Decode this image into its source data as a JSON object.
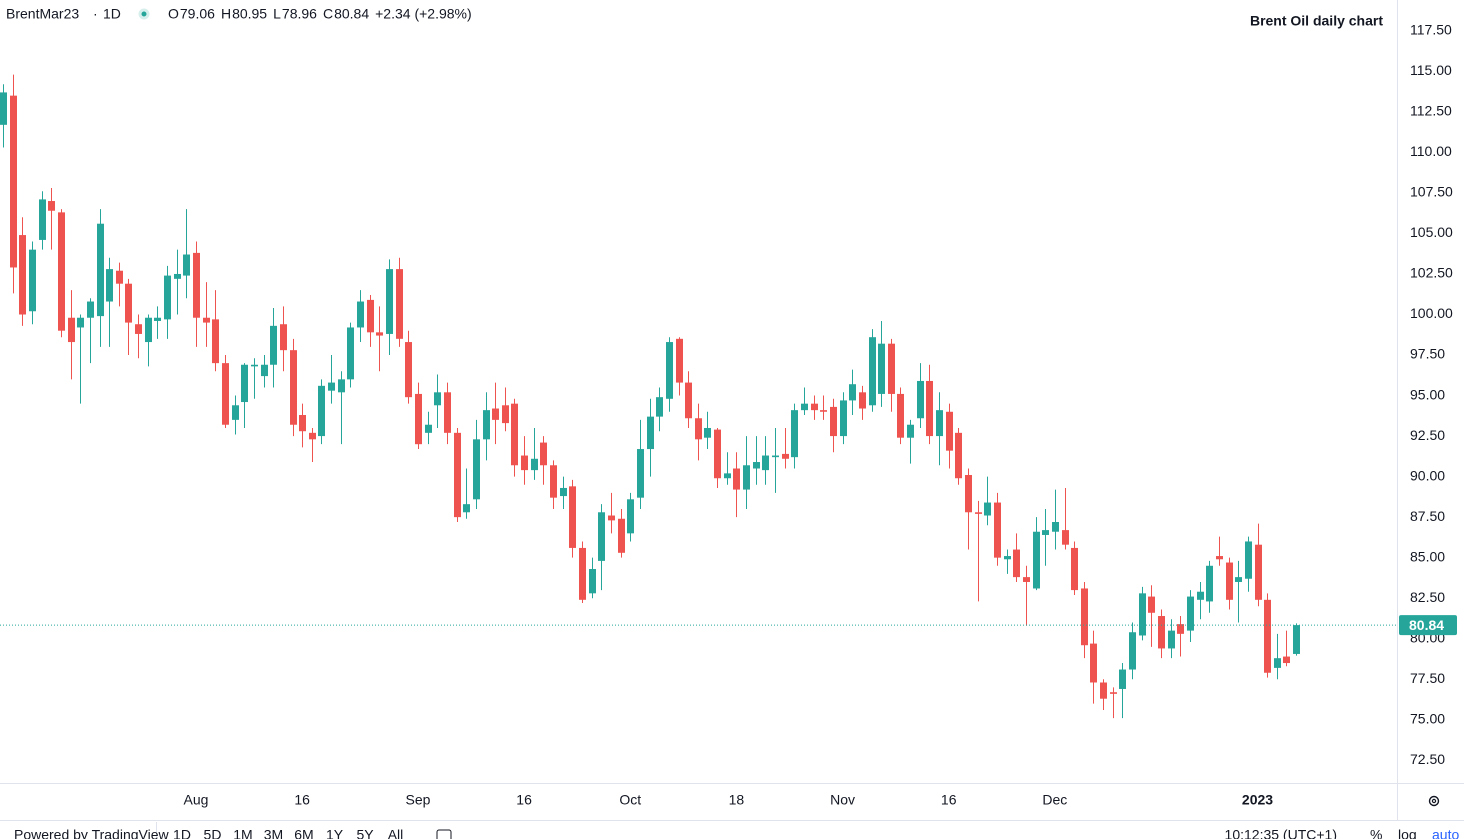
{
  "header": {
    "symbol": "BrentMar23",
    "separator": "·",
    "interval": "1D",
    "ohlc": [
      {
        "label": "O",
        "value": "79.06"
      },
      {
        "label": "H",
        "value": "80.95"
      },
      {
        "label": "L",
        "value": "78.96"
      },
      {
        "label": "C",
        "value": "80.84"
      }
    ],
    "change": "+2.34 (+2.98%)"
  },
  "chart_data": {
    "type": "candlestick",
    "title": "Brent Oil daily chart",
    "up_color": "#26a69a",
    "down_color": "#ef5350",
    "grid": false,
    "categories": [
      null,
      null,
      null,
      null,
      null,
      null,
      null,
      null,
      null,
      null,
      null,
      null,
      null,
      null,
      null,
      null,
      null,
      null,
      null,
      null,
      "Aug",
      null,
      null,
      null,
      null,
      null,
      null,
      null,
      null,
      null,
      null,
      "16",
      null,
      null,
      null,
      null,
      null,
      null,
      null,
      null,
      null,
      null,
      null,
      "Sep",
      null,
      null,
      null,
      null,
      null,
      null,
      null,
      null,
      null,
      null,
      "16",
      null,
      null,
      null,
      null,
      null,
      null,
      null,
      null,
      null,
      null,
      "Oct",
      null,
      null,
      null,
      null,
      null,
      null,
      null,
      null,
      null,
      null,
      "18",
      null,
      null,
      null,
      null,
      null,
      null,
      null,
      null,
      null,
      null,
      "Nov",
      null,
      null,
      null,
      null,
      null,
      null,
      null,
      null,
      null,
      null,
      "16",
      null,
      null,
      null,
      null,
      null,
      null,
      null,
      null,
      null,
      null,
      "Dec",
      null,
      null,
      null,
      null,
      null,
      null,
      null,
      null,
      null,
      null,
      null,
      null,
      null,
      null,
      null,
      null,
      null,
      null,
      null,
      null,
      "2023",
      null,
      null,
      null,
      null
    ],
    "ohlc": [
      [
        111.7,
        114.2,
        110.3,
        113.7
      ],
      [
        113.5,
        114.8,
        101.3,
        102.9
      ],
      [
        104.9,
        106,
        99.3,
        100
      ],
      [
        100.2,
        104.5,
        99.4,
        104
      ],
      [
        104.6,
        107.6,
        104,
        107.1
      ],
      [
        107,
        107.8,
        104,
        106.4
      ],
      [
        106.3,
        106.5,
        98.6,
        99
      ],
      [
        99.8,
        101.5,
        96,
        98.3
      ],
      [
        99.2,
        100,
        94.5,
        99.8
      ],
      [
        99.8,
        101,
        97,
        100.8
      ],
      [
        99.9,
        106.5,
        98,
        105.6
      ],
      [
        100.8,
        103.5,
        98,
        102.8
      ],
      [
        102.7,
        103.2,
        100.5,
        101.9
      ],
      [
        101.9,
        102.2,
        97.5,
        99.5
      ],
      [
        99.4,
        100,
        97.3,
        98.8
      ],
      [
        98.3,
        100,
        96.8,
        99.8
      ],
      [
        99.6,
        100.5,
        98.5,
        99.8
      ],
      [
        99.7,
        103,
        98.5,
        102.4
      ],
      [
        102.2,
        104,
        100,
        102.5
      ],
      [
        102.4,
        106.5,
        101,
        103.7
      ],
      [
        103.8,
        104.5,
        98,
        99.8
      ],
      [
        99.8,
        102,
        98,
        99.5
      ],
      [
        99.7,
        101.5,
        96.5,
        97
      ],
      [
        97,
        97.5,
        93,
        93.2
      ],
      [
        93.5,
        95,
        92.6,
        94.4
      ],
      [
        94.6,
        97,
        93,
        96.9
      ],
      [
        96.8,
        97.3,
        94.8,
        96.9
      ],
      [
        96.2,
        97.5,
        95.5,
        96.9
      ],
      [
        96.9,
        100.4,
        95.5,
        99.3
      ],
      [
        99.4,
        100.5,
        96.5,
        97.8
      ],
      [
        97.8,
        98.5,
        92.5,
        93.2
      ],
      [
        93.8,
        94.5,
        91.8,
        92.8
      ],
      [
        92.7,
        93,
        90.9,
        92.3
      ],
      [
        92.5,
        96,
        92,
        95.6
      ],
      [
        95.3,
        97.5,
        94.5,
        95.8
      ],
      [
        95.2,
        96.5,
        92,
        96
      ],
      [
        96,
        99.5,
        95.5,
        99.2
      ],
      [
        99.2,
        101.5,
        98.3,
        100.8
      ],
      [
        100.9,
        101.2,
        98,
        98.9
      ],
      [
        98.9,
        100.5,
        96.5,
        98.7
      ],
      [
        98.8,
        103.4,
        97.5,
        102.8
      ],
      [
        102.8,
        103.5,
        98,
        98.5
      ],
      [
        98.3,
        99,
        94.5,
        94.9
      ],
      [
        95.1,
        95.8,
        91.7,
        92
      ],
      [
        92.7,
        94,
        92,
        93.2
      ],
      [
        94.4,
        96.3,
        93,
        95.2
      ],
      [
        95.2,
        95.8,
        92,
        92.7
      ],
      [
        92.7,
        93,
        87.2,
        87.5
      ],
      [
        87.8,
        90.5,
        87.4,
        88.3
      ],
      [
        88.6,
        93.5,
        88,
        92.3
      ],
      [
        92.3,
        95.2,
        91,
        94.1
      ],
      [
        94.2,
        95.8,
        92,
        93.5
      ],
      [
        94.4,
        95.5,
        92.8,
        93.3
      ],
      [
        94.5,
        94.8,
        90,
        90.7
      ],
      [
        91.3,
        92.5,
        89.5,
        90.4
      ],
      [
        90.4,
        93,
        89.8,
        91.1
      ],
      [
        92.1,
        92.5,
        89.5,
        90.7
      ],
      [
        90.7,
        91,
        88,
        88.7
      ],
      [
        88.8,
        90,
        88,
        89.3
      ],
      [
        89.4,
        89.8,
        85,
        85.6
      ],
      [
        85.6,
        86,
        82.2,
        82.4
      ],
      [
        82.8,
        85,
        82.5,
        84.3
      ],
      [
        84.8,
        88.3,
        83,
        87.8
      ],
      [
        87.6,
        89,
        86.5,
        87.3
      ],
      [
        87.4,
        88,
        85,
        85.3
      ],
      [
        86.5,
        89,
        86,
        88.6
      ],
      [
        88.7,
        93.5,
        88,
        91.7
      ],
      [
        91.7,
        94.8,
        90,
        93.7
      ],
      [
        93.7,
        95.5,
        92.8,
        94.9
      ],
      [
        94.8,
        98.6,
        94,
        98.3
      ],
      [
        98.5,
        98.6,
        95,
        95.8
      ],
      [
        95.8,
        96.5,
        93,
        93.6
      ],
      [
        93.6,
        94.5,
        91,
        92.3
      ],
      [
        92.4,
        94,
        91.7,
        93
      ],
      [
        92.9,
        93,
        89.3,
        89.9
      ],
      [
        89.9,
        91.5,
        89.5,
        90.2
      ],
      [
        90.5,
        91.5,
        87.5,
        89.2
      ],
      [
        89.2,
        92.5,
        88,
        90.7
      ],
      [
        90.5,
        92.5,
        89.5,
        90.9
      ],
      [
        90.4,
        92.5,
        89.5,
        91.3
      ],
      [
        91.2,
        93,
        89,
        91.3
      ],
      [
        91.4,
        93,
        90.5,
        91.1
      ],
      [
        91.2,
        94.5,
        90.5,
        94.1
      ],
      [
        94.1,
        95.5,
        93.8,
        94.5
      ],
      [
        94.5,
        95,
        93.5,
        94.1
      ],
      [
        94.1,
        95,
        93.5,
        94
      ],
      [
        94.3,
        94.8,
        91.5,
        92.5
      ],
      [
        92.5,
        95.2,
        92,
        94.7
      ],
      [
        94.7,
        96.6,
        93.8,
        95.7
      ],
      [
        95.2,
        95.6,
        93.5,
        94.2
      ],
      [
        94.4,
        99.1,
        94,
        98.6
      ],
      [
        95.1,
        99.6,
        94.3,
        98.2
      ],
      [
        98.2,
        98.5,
        94,
        95.1
      ],
      [
        95.1,
        95.5,
        92,
        92.4
      ],
      [
        92.4,
        93.5,
        90.8,
        93.2
      ],
      [
        93.6,
        97,
        93,
        95.9
      ],
      [
        95.9,
        96.9,
        92,
        92.5
      ],
      [
        92.5,
        95.2,
        90.7,
        94.1
      ],
      [
        94,
        94.5,
        90.5,
        91.6
      ],
      [
        92.7,
        93,
        89.5,
        89.9
      ],
      [
        90.1,
        90.5,
        85.5,
        87.8
      ],
      [
        87.8,
        88.5,
        82.3,
        87.7
      ],
      [
        87.6,
        90,
        87,
        88.4
      ],
      [
        88.4,
        89,
        84.5,
        85
      ],
      [
        84.9,
        85.5,
        84,
        85.1
      ],
      [
        85.5,
        86.5,
        83.5,
        83.8
      ],
      [
        83.8,
        84.5,
        80.8,
        83.5
      ],
      [
        83.1,
        87.5,
        83,
        86.6
      ],
      [
        86.4,
        88,
        84.5,
        86.7
      ],
      [
        86.6,
        89.2,
        85.5,
        87.2
      ],
      [
        86.7,
        89.3,
        85.5,
        85.8
      ],
      [
        85.6,
        86,
        82.7,
        83
      ],
      [
        83.1,
        83.5,
        78.8,
        79.6
      ],
      [
        79.7,
        80.5,
        76,
        77.3
      ],
      [
        77.3,
        77.5,
        75.6,
        76.3
      ],
      [
        76.7,
        77,
        75.1,
        76.6
      ],
      [
        76.9,
        78.5,
        75.1,
        78.1
      ],
      [
        78.1,
        81,
        77.5,
        80.4
      ],
      [
        80.2,
        83.2,
        79.9,
        82.8
      ],
      [
        82.6,
        83.3,
        79.5,
        81.6
      ],
      [
        81.4,
        81.8,
        78.8,
        79.4
      ],
      [
        79.4,
        81.2,
        78.8,
        80.5
      ],
      [
        80.9,
        81.4,
        78.9,
        80.3
      ],
      [
        80.5,
        83,
        79.8,
        82.6
      ],
      [
        82.4,
        83.5,
        81.2,
        82.9
      ],
      [
        82.3,
        84.8,
        81.6,
        84.5
      ],
      [
        85.1,
        86.3,
        84.5,
        84.9
      ],
      [
        84.7,
        85,
        81.8,
        82.4
      ],
      [
        83.5,
        84.8,
        81,
        83.8
      ],
      [
        83.7,
        86.3,
        82.9,
        86
      ],
      [
        85.8,
        87.1,
        82,
        82.4
      ],
      [
        82.4,
        82.8,
        77.6,
        77.9
      ],
      [
        78.2,
        80.3,
        77.5,
        78.8
      ],
      [
        78.9,
        80.5,
        78.3,
        78.5
      ],
      [
        79.06,
        80.95,
        78.96,
        80.84
      ]
    ],
    "ylim": [
      71.1,
      119.4
    ],
    "yticks": [
      {
        "value": 72.5,
        "label": "72.50"
      },
      {
        "value": 75,
        "label": "75.00"
      },
      {
        "value": 77.5,
        "label": "77.50"
      },
      {
        "value": 80,
        "label": "80.00"
      },
      {
        "value": 82.5,
        "label": "82.50"
      },
      {
        "value": 85,
        "label": "85.00"
      },
      {
        "value": 87.5,
        "label": "87.50"
      },
      {
        "value": 90,
        "label": "90.00"
      },
      {
        "value": 92.5,
        "label": "92.50"
      },
      {
        "value": 95,
        "label": "95.00"
      },
      {
        "value": 97.5,
        "label": "97.50"
      },
      {
        "value": 100,
        "label": "100.00"
      },
      {
        "value": 102.5,
        "label": "102.50"
      },
      {
        "value": 105,
        "label": "105.00"
      },
      {
        "value": 107.5,
        "label": "107.50"
      },
      {
        "value": 110,
        "label": "110.00"
      },
      {
        "value": 112.5,
        "label": "112.50"
      },
      {
        "value": 115,
        "label": "115.00"
      },
      {
        "value": 117.5,
        "label": "117.50"
      }
    ]
  },
  "toolbar": {
    "powered": "Powered by TradingView",
    "ranges": [
      "1D",
      "5D",
      "1M",
      "3M",
      "6M",
      "1Y",
      "5Y",
      "All"
    ],
    "time": "10:12:35 (UTC+1)",
    "percent": "%",
    "log": "log",
    "auto": "auto"
  }
}
